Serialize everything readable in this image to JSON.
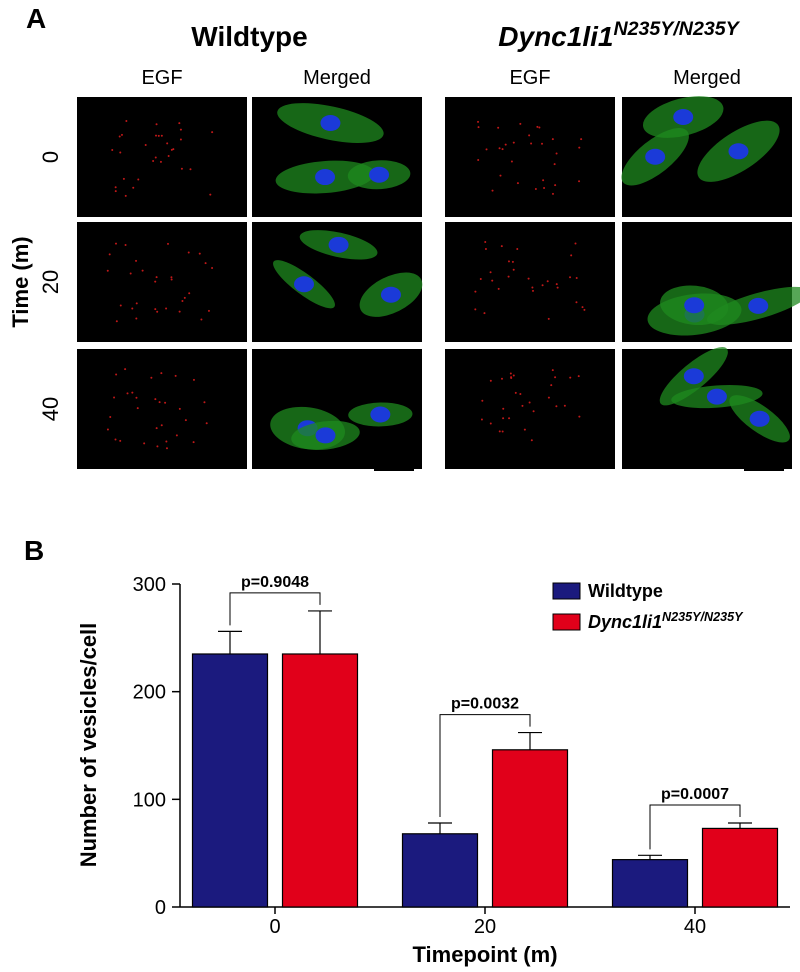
{
  "panel_a": {
    "label": "A",
    "groups": [
      {
        "title": "Wildtype",
        "columns": [
          "EGF",
          "Merged"
        ]
      },
      {
        "title": "Dync1li1",
        "title_superscript": "N235Y/N235Y",
        "columns": [
          "EGF",
          "Merged"
        ]
      }
    ],
    "rows": [
      "0",
      "20",
      "40"
    ],
    "row_axis_label": "Time (m)"
  },
  "chart_data": {
    "type": "bar",
    "panel_label": "B",
    "xlabel": "Timepoint (m)",
    "ylabel": "Number of vesicles/cell",
    "categories": [
      "0",
      "20",
      "40"
    ],
    "ylim": [
      0,
      300
    ],
    "yticks": [
      0,
      100,
      200,
      300
    ],
    "legend": "upper right",
    "series": [
      {
        "name": "Wildtype",
        "color": "#1b1a7e",
        "values": [
          235,
          68,
          44
        ],
        "errors": [
          21,
          10,
          4
        ]
      },
      {
        "name": "Dync1li1",
        "name_superscript": "N235Y/N235Y",
        "color": "#e1001a",
        "values": [
          235,
          146,
          73
        ],
        "errors": [
          40,
          16,
          5
        ]
      }
    ],
    "annotations": [
      "p=0.9048",
      "p=0.0032",
      "p=0.0007"
    ]
  }
}
